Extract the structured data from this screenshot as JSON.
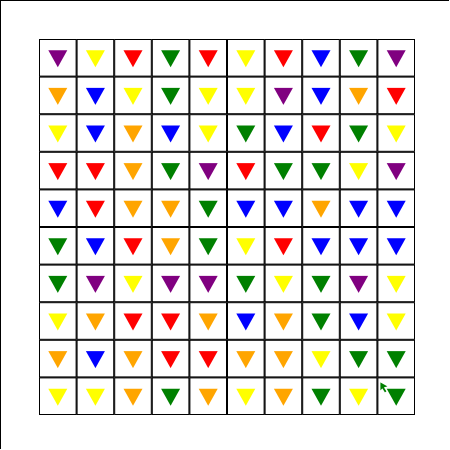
{
  "colors": {
    "P": "#800080",
    "Y": "#ffff00",
    "R": "#ff0000",
    "G": "#008000",
    "O": "#ffa500",
    "B": "#0000ff",
    "grid_line": "#000000",
    "background": "#ffffff"
  },
  "grid": {
    "rows": 10,
    "cols": 10,
    "cells": [
      [
        "P",
        "Y",
        "R",
        "G",
        "R",
        "Y",
        "R",
        "B",
        "G",
        "P"
      ],
      [
        "O",
        "B",
        "Y",
        "G",
        "Y",
        "Y",
        "P",
        "B",
        "O",
        "R"
      ],
      [
        "Y",
        "B",
        "O",
        "B",
        "Y",
        "G",
        "B",
        "R",
        "G",
        "Y"
      ],
      [
        "R",
        "R",
        "O",
        "G",
        "P",
        "R",
        "G",
        "G",
        "Y",
        "P"
      ],
      [
        "B",
        "R",
        "O",
        "O",
        "G",
        "B",
        "B",
        "O",
        "B",
        "B"
      ],
      [
        "G",
        "B",
        "R",
        "O",
        "G",
        "Y",
        "R",
        "B",
        "B",
        "B"
      ],
      [
        "G",
        "P",
        "Y",
        "P",
        "P",
        "G",
        "Y",
        "G",
        "P",
        "Y"
      ],
      [
        "Y",
        "O",
        "R",
        "R",
        "O",
        "B",
        "O",
        "G",
        "B",
        "Y"
      ],
      [
        "O",
        "B",
        "O",
        "R",
        "R",
        "O",
        "O",
        "Y",
        "G",
        "G"
      ],
      [
        "Y",
        "Y",
        "O",
        "G",
        "O",
        "Y",
        "O",
        "G",
        "Y",
        "G"
      ]
    ]
  },
  "cursor": {
    "row": 9,
    "col": 9,
    "icon": "arrow-cursor-icon",
    "color": "#008000"
  }
}
